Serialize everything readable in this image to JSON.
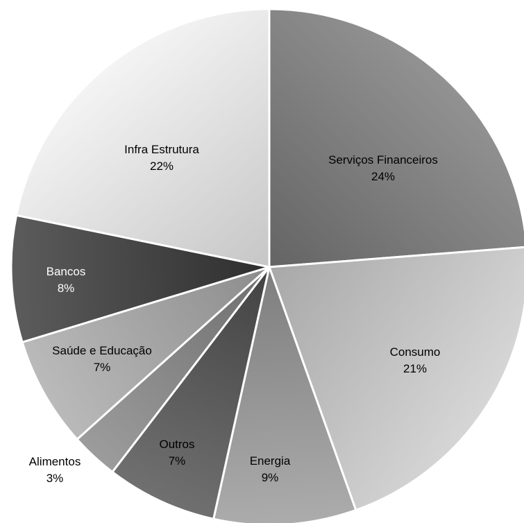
{
  "chart_data": {
    "type": "pie",
    "title": "",
    "slices": [
      {
        "label": "Serviços Financeiros",
        "value": 24,
        "value_label": "24%",
        "color": "#808080",
        "label_color": "#000000"
      },
      {
        "label": "Consumo",
        "value": 21,
        "value_label": "21%",
        "color": "#c4c4c4",
        "label_color": "#000000"
      },
      {
        "label": "Energia",
        "value": 9,
        "value_label": "9%",
        "color": "#9a9a9a",
        "label_color": "#000000"
      },
      {
        "label": "Outros",
        "value": 7,
        "value_label": "7%",
        "color": "#5e5e5e",
        "label_color": "#000000"
      },
      {
        "label": "Alimentos",
        "value": 3,
        "value_label": "3%",
        "color": "#8a8a8a",
        "label_color": "#000000"
      },
      {
        "label": "Saúde e Educação",
        "value": 7,
        "value_label": "7%",
        "color": "#a8a8a8",
        "label_color": "#000000"
      },
      {
        "label": "Bancos",
        "value": 8,
        "value_label": "8%",
        "color": "#4a4a4a",
        "label_color": "#ffffff"
      },
      {
        "label": "Infra Estrutura",
        "value": 22,
        "value_label": "22%",
        "color": "#e2e2e2",
        "label_color": "#000000"
      }
    ],
    "start_angle": "12 o'clock",
    "direction": "clockwise",
    "legend": "none",
    "data_labels": "category and percentage"
  }
}
